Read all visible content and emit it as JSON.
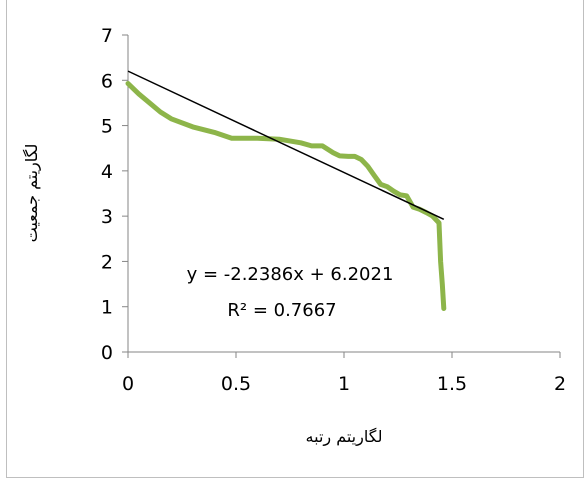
{
  "chart_data": {
    "type": "line",
    "title": "",
    "xlabel": "لگاریتم رتبه",
    "ylabel": "لگاریتم جمعیت",
    "xlim": [
      0,
      2
    ],
    "ylim": [
      0,
      7
    ],
    "x_ticks": [
      "0",
      "0.5",
      "1",
      "1.5",
      "2"
    ],
    "y_ticks": [
      "0",
      "1",
      "2",
      "3",
      "4",
      "5",
      "6",
      "7"
    ],
    "grid": false,
    "legend": "none",
    "series": [
      {
        "color": "#8db54a",
        "points": [
          [
            0,
            5.93
          ],
          [
            0.05,
            5.7
          ],
          [
            0.1,
            5.5
          ],
          [
            0.15,
            5.3
          ],
          [
            0.2,
            5.15
          ],
          [
            0.3,
            4.97
          ],
          [
            0.4,
            4.85
          ],
          [
            0.48,
            4.72
          ],
          [
            0.6,
            4.72
          ],
          [
            0.7,
            4.7
          ],
          [
            0.8,
            4.62
          ],
          [
            0.85,
            4.55
          ],
          [
            0.9,
            4.55
          ],
          [
            0.95,
            4.4
          ],
          [
            0.98,
            4.33
          ],
          [
            1.02,
            4.32
          ],
          [
            1.05,
            4.32
          ],
          [
            1.08,
            4.25
          ],
          [
            1.11,
            4.1
          ],
          [
            1.14,
            3.9
          ],
          [
            1.17,
            3.7
          ],
          [
            1.2,
            3.65
          ],
          [
            1.23,
            3.55
          ],
          [
            1.26,
            3.47
          ],
          [
            1.29,
            3.45
          ],
          [
            1.32,
            3.2
          ],
          [
            1.35,
            3.15
          ],
          [
            1.38,
            3.08
          ],
          [
            1.41,
            3.0
          ],
          [
            1.44,
            2.85
          ],
          [
            1.447,
            2.0
          ],
          [
            1.455,
            1.5
          ],
          [
            1.462,
            0.96
          ]
        ]
      }
    ],
    "trendline": {
      "color": "#000000",
      "slope": -2.2386,
      "intercept": 6.2021,
      "x_range": [
        0,
        1.462
      ],
      "equation_text": "y = -2.2386x + 6.2021",
      "r2_text": "R² = 0.7667"
    }
  }
}
